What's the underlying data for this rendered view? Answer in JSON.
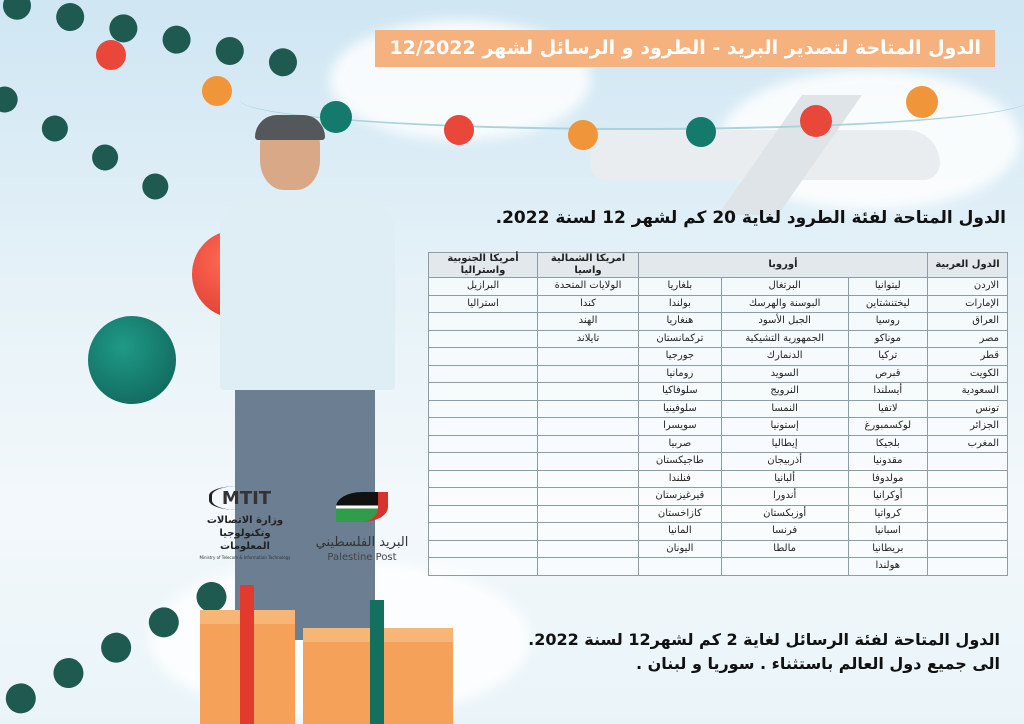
{
  "title": "الدول المتاحة لتصدير البريد -  الطرود و الرسائل لشهر 12/2022",
  "parcels_heading": "الدول المتاحة لفئة الطرود لغاية 20 كم  لشهر 12 لسنة 2022.",
  "table": {
    "headers": {
      "arab": "الدول العربية",
      "europe": "أوروبا",
      "na_asia": "امريكا الشمالية واسيا",
      "sa_aus": "أمريكا الجنوبية واستراليا"
    },
    "rows": [
      [
        "الاردن",
        "ليتوانيا",
        "البرتغال",
        "بلغاريا",
        "الولايات المتحدة",
        "البرازيل"
      ],
      [
        "الإمارات",
        "ليختنشتاين",
        "البوسنة والهرسك",
        "بولندا",
        "كندا",
        "استراليا"
      ],
      [
        "العراق",
        "روسيا",
        "الجبل الأسود",
        "هنغاريا",
        "الهند",
        ""
      ],
      [
        "مصر",
        "موناكو",
        "الجمهورية التشيكية",
        "تركمانستان",
        "تايلاند",
        ""
      ],
      [
        "قطر",
        "تركيا",
        "الدنمارك",
        "جورجيا",
        "",
        ""
      ],
      [
        "الكويت",
        "قبرص",
        "السويد",
        "رومانيا",
        "",
        ""
      ],
      [
        "السعودية",
        "أيسلندا",
        "النرويج",
        "سلوفاكيا",
        "",
        ""
      ],
      [
        "تونس",
        "لاتفيا",
        "النمسا",
        "سلوفينيا",
        "",
        ""
      ],
      [
        "الجزائر",
        "لوكسمبورغ",
        "إستونيا",
        "سويسرا",
        "",
        ""
      ],
      [
        "المغرب",
        "بلجيكا",
        "إيطاليا",
        "صربيا",
        "",
        ""
      ],
      [
        "",
        "مقدونيا",
        "أذربيجان",
        "طاجيكستان",
        "",
        ""
      ],
      [
        "",
        "مولدوفا",
        "ألبانيا",
        "فنلندا",
        "",
        ""
      ],
      [
        "",
        "أوكرانيا",
        "أندورا",
        "قيرغيزستان",
        "",
        ""
      ],
      [
        "",
        "كرواتيا",
        "أوزبكستان",
        "كازاخستان",
        "",
        ""
      ],
      [
        "",
        "اسبانيا",
        "فرنسا",
        "المانيا",
        "",
        ""
      ],
      [
        "",
        "بريطانيا",
        "مالطا",
        "اليونان",
        "",
        ""
      ],
      [
        "",
        "هولندا",
        "",
        "",
        "",
        ""
      ]
    ]
  },
  "letters_line1": "الدول المتاحة لفئة الرسائل لغاية 2 كم لشهر12 لسنة 2022.",
  "letters_line2": "الى جميع دول العالم باستثناء . سوريا و لبنان .",
  "logos": {
    "mtit_mark": "MTIT",
    "mtit_ar": "وزارة الاتصالات وتكنولوجيا المعلومات",
    "mtit_en": "Ministry of Telecom & Information Technology",
    "post_ar": "البريد الفلسطيني",
    "post_en": "Palestine Post"
  },
  "colors": {
    "banner": "#f5b27f",
    "ornament_red": "#e8473a",
    "ornament_teal": "#137a6c",
    "ornament_orange": "#f0953a"
  }
}
